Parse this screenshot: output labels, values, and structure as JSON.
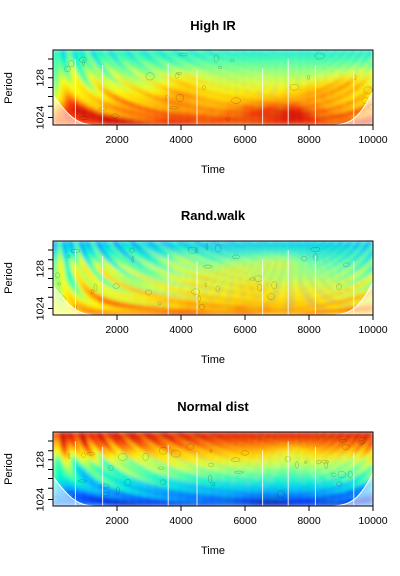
{
  "chart_data": [
    {
      "type": "heatmap",
      "title": "High IR",
      "xlabel": "Time",
      "ylabel": "Period",
      "xlim": [
        0,
        10000
      ],
      "x_ticks": [
        "2000",
        "4000",
        "6000",
        "8000",
        "10000"
      ],
      "x_tick_values": [
        2000,
        4000,
        6000,
        8000,
        10000
      ],
      "y_ticks": [
        "128",
        "1024"
      ],
      "y_tick_values": [
        128,
        1024
      ],
      "y_scale": "log2, reversed",
      "power_level": "high at long periods"
    },
    {
      "type": "heatmap",
      "title": "Rand.walk",
      "xlabel": "Time",
      "ylabel": "Period",
      "xlim": [
        0,
        10000
      ],
      "x_ticks": [
        "2000",
        "4000",
        "6000",
        "8000",
        "10000"
      ],
      "x_tick_values": [
        2000,
        4000,
        6000,
        8000,
        10000
      ],
      "y_ticks": [
        "128",
        "1024"
      ],
      "y_tick_values": [
        128,
        1024
      ],
      "y_scale": "log2, reversed",
      "power_level": "mixed"
    },
    {
      "type": "heatmap",
      "title": "Normal dist",
      "xlabel": "Time",
      "ylabel": "Period",
      "xlim": [
        0,
        10000
      ],
      "x_ticks": [
        "2000",
        "4000",
        "6000",
        "8000",
        "10000"
      ],
      "x_tick_values": [
        2000,
        4000,
        6000,
        8000,
        10000
      ],
      "y_ticks": [
        "128",
        "1024"
      ],
      "y_tick_values": [
        128,
        1024
      ],
      "y_scale": "log2, reversed",
      "power_level": "high at short periods"
    }
  ],
  "colors": {
    "low": "#00007f",
    "mid_low": "#00bfff",
    "mid": "#7fff7f",
    "mid_high": "#ffbf00",
    "high": "#c80000",
    "cone_shade": "#ffffff"
  }
}
